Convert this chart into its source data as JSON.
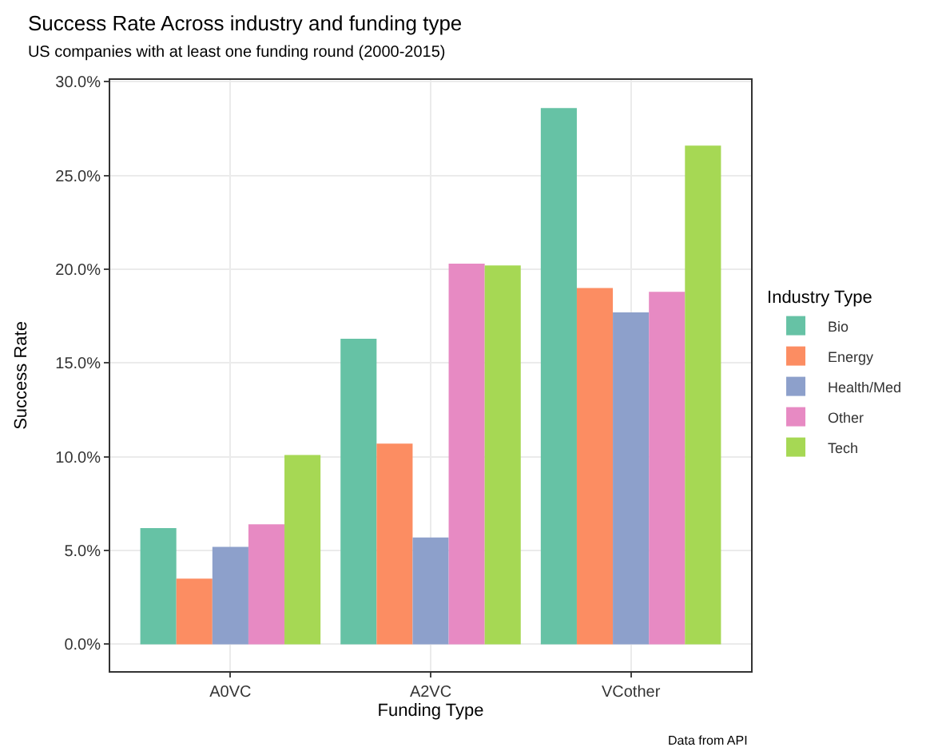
{
  "chart_data": {
    "type": "bar",
    "title": "Success Rate Across industry and funding type",
    "subtitle": "US companies with at least one funding round (2000-2015)",
    "xlabel": "Funding Type",
    "ylabel": "Success Rate",
    "legend_title": "Industry Type",
    "categories": [
      "A0VC",
      "A2VC",
      "VCother"
    ],
    "series": [
      {
        "name": "Bio",
        "color": "#66c2a5",
        "values": [
          6.2,
          16.3,
          28.6
        ]
      },
      {
        "name": "Energy",
        "color": "#fc8d62",
        "values": [
          3.5,
          10.7,
          19.0
        ]
      },
      {
        "name": "Health/Med",
        "color": "#8da0cb",
        "values": [
          5.2,
          5.7,
          17.7
        ]
      },
      {
        "name": "Other",
        "color": "#e78ac3",
        "values": [
          6.4,
          20.3,
          18.8
        ]
      },
      {
        "name": "Tech",
        "color": "#a6d854",
        "values": [
          10.1,
          20.2,
          26.6
        ]
      }
    ],
    "ylim": [
      -1.43,
      30.1
    ],
    "yticks": [
      {
        "value": 0,
        "label": "0.0%"
      },
      {
        "value": 5,
        "label": "5.0%"
      },
      {
        "value": 10,
        "label": "10.0%"
      },
      {
        "value": 15,
        "label": "15.0%"
      },
      {
        "value": 20,
        "label": "20.0%"
      },
      {
        "value": 25,
        "label": "25.0%"
      },
      {
        "value": 30,
        "label": "30.0%"
      }
    ],
    "grid": true,
    "legend": "right",
    "annotations": [
      "Data from API"
    ]
  }
}
